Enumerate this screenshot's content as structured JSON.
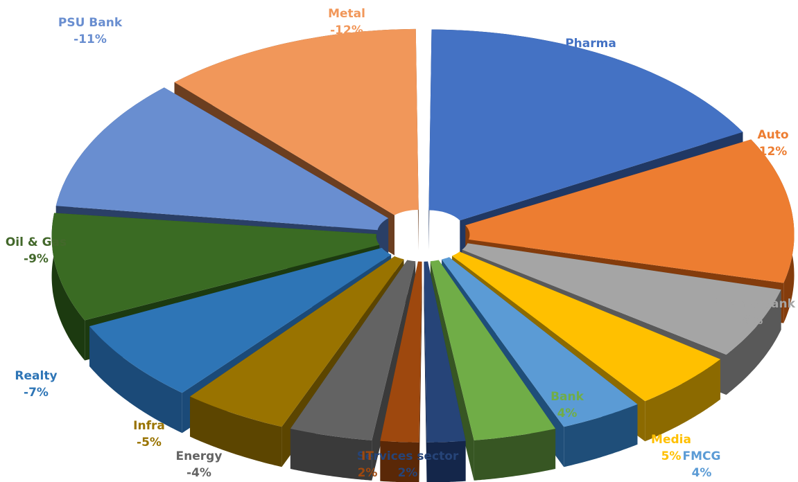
{
  "chart_data": {
    "type": "pie",
    "title": "",
    "exploded": true,
    "style": "3d",
    "legend": "none",
    "slices": [
      {
        "label": "Pharma",
        "value": "17%",
        "magnitude": 17,
        "color": "#4472C4",
        "side": "#203864",
        "label_color": "#4472C4"
      },
      {
        "label": "Auto",
        "value": "12%",
        "magnitude": 12,
        "color": "#ED7D31",
        "side": "#843C0C",
        "label_color": "#ED7D31"
      },
      {
        "label": "Private bank",
        "value": "6%",
        "magnitude": 6,
        "color": "#A5A5A5",
        "side": "#595959",
        "label_color": "#A5A5A5"
      },
      {
        "label": "Media",
        "value": "5%",
        "magnitude": 5,
        "color": "#FFC000",
        "side": "#8C6A00",
        "label_color": "#FFC000"
      },
      {
        "label": "FMCG",
        "value": "4%",
        "magnitude": 4,
        "color": "#5B9BD5",
        "side": "#1F4E79",
        "label_color": "#5B9BD5"
      },
      {
        "label": "Bank",
        "value": "4%",
        "magnitude": 4,
        "color": "#70AD47",
        "side": "#375623",
        "label_color": "#70AD47"
      },
      {
        "label": "Services sector",
        "value": "2%",
        "magnitude": 2,
        "color": "#264478",
        "side": "#14264A",
        "label_color": "#264478"
      },
      {
        "label": "IT",
        "value": "2%",
        "magnitude": 2,
        "color": "#9E480E",
        "side": "#5A2807",
        "label_color": "#9E480E"
      },
      {
        "label": "Energy",
        "value": "-4%",
        "magnitude": 4,
        "color": "#636363",
        "side": "#3A3A3A",
        "label_color": "#636363"
      },
      {
        "label": "Infra",
        "value": "-5%",
        "magnitude": 5,
        "color": "#997300",
        "side": "#5C4500",
        "label_color": "#997300"
      },
      {
        "label": "Realty",
        "value": "-7%",
        "magnitude": 7,
        "color": "#2E75B6",
        "side": "#1B4A78",
        "label_color": "#2E75B6"
      },
      {
        "label": "Oil & Gas",
        "value": "-9%",
        "magnitude": 9,
        "color": "#3A6B23",
        "side": "#1C3A10",
        "label_color": "#43682B"
      },
      {
        "label": "PSU Bank",
        "value": "-11%",
        "magnitude": 11,
        "color": "#698ED0",
        "side": "#2A3F66",
        "label_color": "#698ED0"
      },
      {
        "label": "Metal",
        "value": "-12%",
        "magnitude": 12,
        "color": "#F1975A",
        "side": "#6B3E20",
        "label_color": "#F1975A"
      }
    ]
  }
}
